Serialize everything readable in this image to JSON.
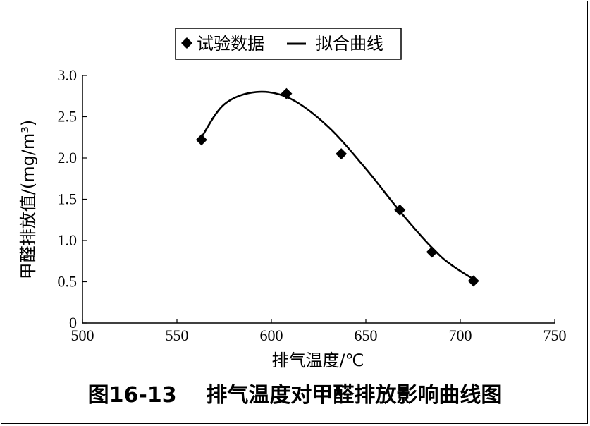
{
  "caption": "图16-13    排气温度对甲醛排放影响曲线图",
  "chart_data": {
    "type": "scatter",
    "xlabel": "排气温度/℃",
    "ylabel": "甲醛排放值/(mg/m³)",
    "xlim": [
      500,
      750
    ],
    "ylim": [
      0,
      3.0
    ],
    "x_ticks": [
      "500",
      "550",
      "600",
      "650",
      "700",
      "750"
    ],
    "y_ticks": [
      "0",
      "0.5",
      "1.0",
      "1.5",
      "2.0",
      "2.5",
      "3.0"
    ],
    "legend_position": "top-center",
    "series": [
      {
        "name": "试验数据",
        "marker": "diamond",
        "color": "#000000",
        "points": [
          {
            "x": 563,
            "y": 2.22
          },
          {
            "x": 608,
            "y": 2.78
          },
          {
            "x": 637,
            "y": 2.05
          },
          {
            "x": 668,
            "y": 1.37
          },
          {
            "x": 685,
            "y": 0.86
          },
          {
            "x": 707,
            "y": 0.51
          }
        ]
      },
      {
        "name": "拟合曲线",
        "type": "line",
        "color": "#000000",
        "points": [
          {
            "x": 563,
            "y": 2.25
          },
          {
            "x": 575,
            "y": 2.65
          },
          {
            "x": 592,
            "y": 2.8
          },
          {
            "x": 610,
            "y": 2.72
          },
          {
            "x": 630,
            "y": 2.38
          },
          {
            "x": 650,
            "y": 1.87
          },
          {
            "x": 670,
            "y": 1.3
          },
          {
            "x": 690,
            "y": 0.8
          },
          {
            "x": 707,
            "y": 0.53
          }
        ]
      }
    ]
  }
}
